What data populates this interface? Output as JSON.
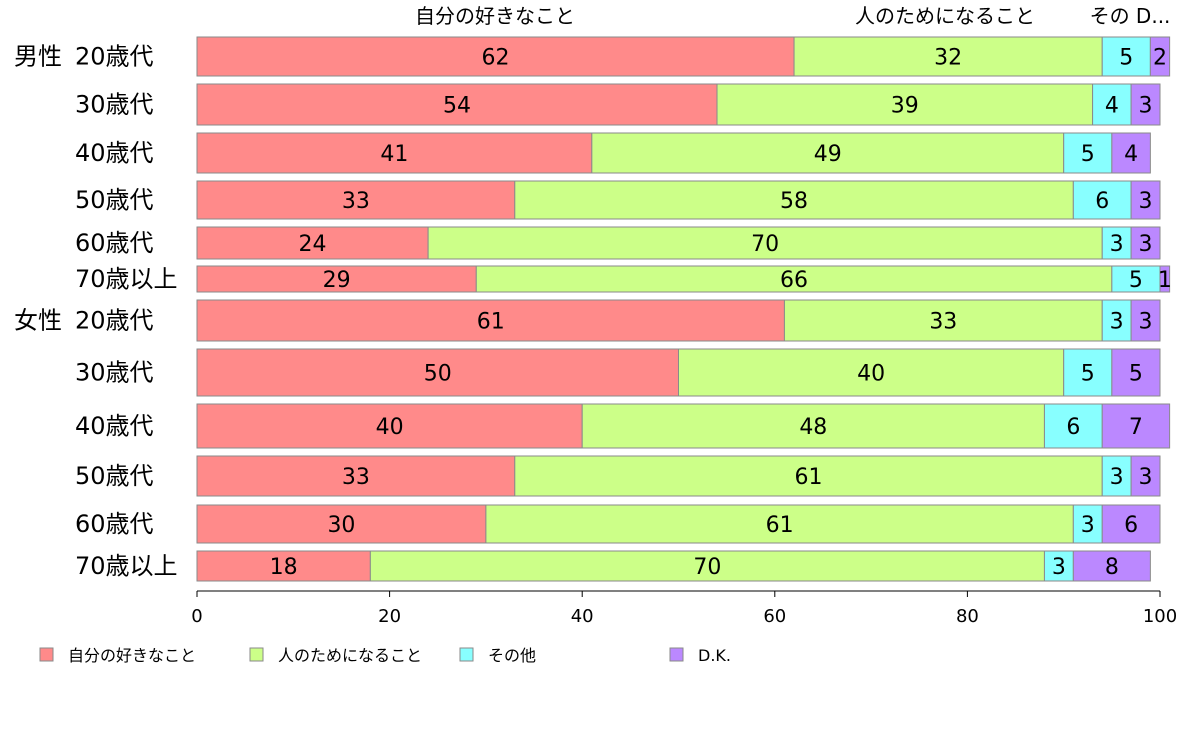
{
  "chart_data": {
    "type": "bar",
    "orientation": "horizontal",
    "stacked": true,
    "column_headers": [
      "自分の好きなこと",
      "人のためになること",
      "その D..."
    ],
    "categories": [
      {
        "group": "男性",
        "label": "20歳代"
      },
      {
        "group": "",
        "label": "30歳代"
      },
      {
        "group": "",
        "label": "40歳代"
      },
      {
        "group": "",
        "label": "50歳代"
      },
      {
        "group": "",
        "label": "60歳代"
      },
      {
        "group": "",
        "label": "70歳以上"
      },
      {
        "group": "女性",
        "label": "20歳代"
      },
      {
        "group": "",
        "label": "30歳代"
      },
      {
        "group": "",
        "label": "40歳代"
      },
      {
        "group": "",
        "label": "50歳代"
      },
      {
        "group": "",
        "label": "60歳代"
      },
      {
        "group": "",
        "label": "70歳以上"
      }
    ],
    "series": [
      {
        "name": "自分の好きなこと",
        "color": "#ff8a8a",
        "values": [
          62,
          54,
          41,
          33,
          24,
          29,
          61,
          50,
          40,
          33,
          30,
          18
        ]
      },
      {
        "name": "人のためになること",
        "color": "#ccff88",
        "values": [
          32,
          39,
          49,
          58,
          70,
          66,
          33,
          40,
          48,
          61,
          61,
          70
        ]
      },
      {
        "name": "その他",
        "color": "#88ffff",
        "values": [
          5,
          4,
          5,
          6,
          3,
          5,
          3,
          5,
          6,
          3,
          3,
          3
        ]
      },
      {
        "name": "D.K.",
        "color": "#bb88ff",
        "values": [
          2,
          3,
          4,
          3,
          3,
          1,
          3,
          5,
          7,
          3,
          6,
          8
        ]
      }
    ],
    "xlim": [
      0,
      100
    ],
    "xticks": [
      0,
      20,
      40,
      60,
      80,
      100
    ],
    "legend_position": "bottom",
    "grid": false
  }
}
